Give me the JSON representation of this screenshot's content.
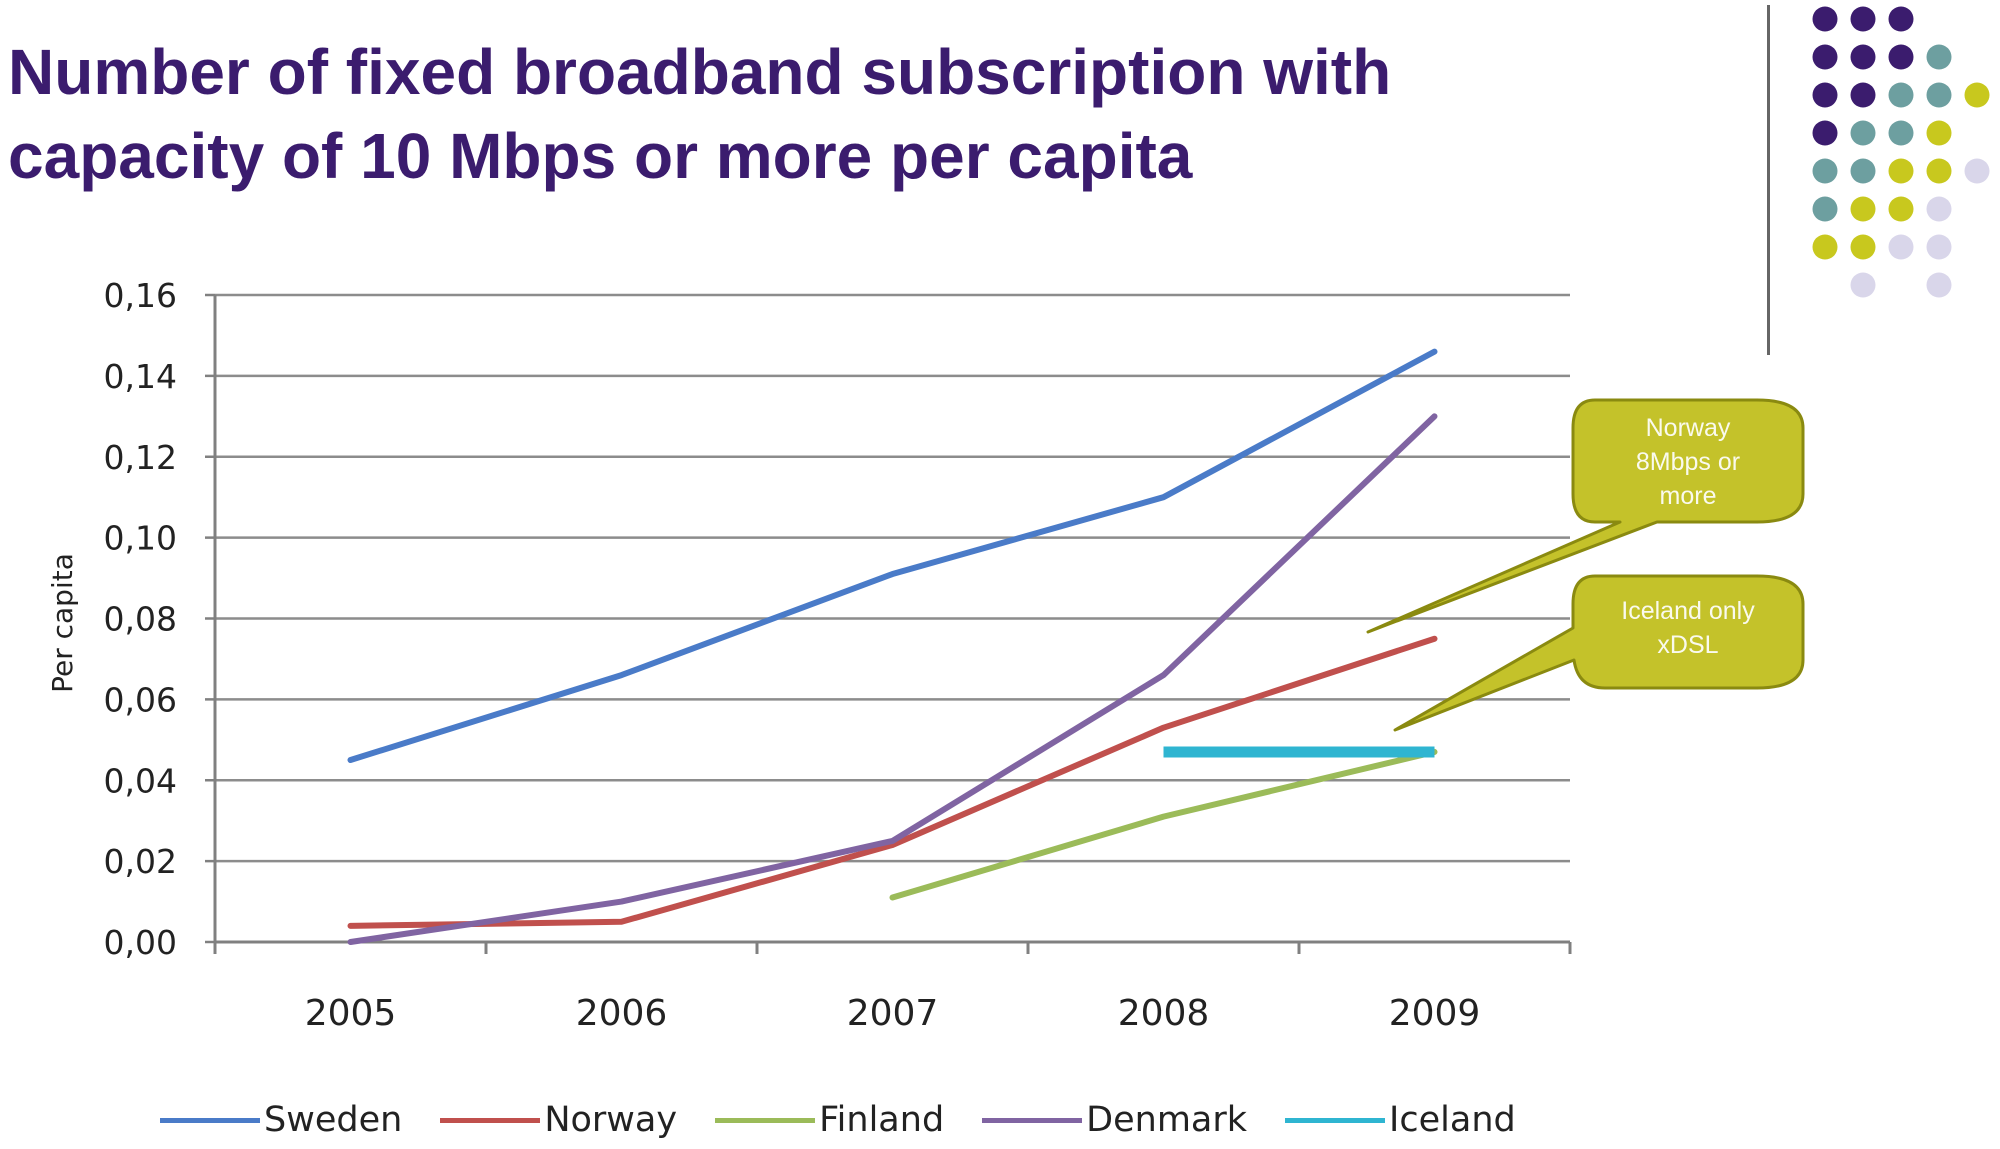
{
  "title": {
    "line1": "Number of fixed broadband subscription with",
    "line2": "capacity of 10 Mbps or more per capita"
  },
  "chart_data": {
    "type": "line",
    "title": "Number of fixed broadband subscription with capacity of 10 Mbps or more per capita",
    "xlabel": "",
    "ylabel": "Per capita",
    "categories": [
      "2005",
      "2006",
      "2007",
      "2008",
      "2009"
    ],
    "ylim": [
      0,
      0.16
    ],
    "yticks": [
      "0,00",
      "0,02",
      "0,04",
      "0,06",
      "0,08",
      "0,10",
      "0,12",
      "0,14",
      "0,16"
    ],
    "grid": true,
    "legend_position": "bottom",
    "series": [
      {
        "name": "Sweden",
        "color": "#4a7bc8",
        "values": [
          0.045,
          0.066,
          0.091,
          0.11,
          0.146
        ]
      },
      {
        "name": "Norway",
        "color": "#c0504d",
        "values": [
          0.004,
          0.005,
          0.024,
          0.053,
          0.075
        ]
      },
      {
        "name": "Finland",
        "color": "#9bbb59",
        "values": [
          null,
          null,
          0.011,
          0.031,
          0.047
        ]
      },
      {
        "name": "Denmark",
        "color": "#8064a2",
        "values": [
          0.0,
          0.01,
          0.025,
          0.066,
          0.13
        ]
      },
      {
        "name": "Iceland",
        "color": "#2fb5d1",
        "values": [
          null,
          null,
          null,
          0.047,
          0.047
        ]
      }
    ],
    "annotations": [
      {
        "text": "Norway 8Mbps or more",
        "lines": [
          "Norway",
          "8Mbps or",
          "more"
        ]
      },
      {
        "text": "Iceland only xDSL",
        "lines": [
          "Iceland only",
          "xDSL"
        ]
      }
    ]
  },
  "colors": {
    "title": "#3b1c6e",
    "callout_fill": "#c4c22a",
    "callout_stroke": "#8a8a10",
    "gridline": "#8c8c8c",
    "axis": "#808080"
  },
  "decoration": {
    "dot_grid": [
      [
        "#3b1c6e",
        "#3b1c6e",
        "#3b1c6e",
        null,
        null
      ],
      [
        "#3b1c6e",
        "#3b1c6e",
        "#3b1c6e",
        "#6d9fa0",
        null
      ],
      [
        "#3b1c6e",
        "#3b1c6e",
        "#6d9fa0",
        "#6d9fa0",
        "#c8c81e"
      ],
      [
        "#3b1c6e",
        "#6d9fa0",
        "#6d9fa0",
        "#c8c81e",
        null
      ],
      [
        "#6d9fa0",
        "#6d9fa0",
        "#c8c81e",
        "#c8c81e",
        "#d9d6ea"
      ],
      [
        "#6d9fa0",
        "#c8c81e",
        "#c8c81e",
        "#d9d6ea",
        null
      ],
      [
        "#c8c81e",
        "#c8c81e",
        "#d9d6ea",
        "#d9d6ea",
        null
      ],
      [
        null,
        "#d9d6ea",
        null,
        "#d9d6ea",
        null
      ]
    ]
  }
}
